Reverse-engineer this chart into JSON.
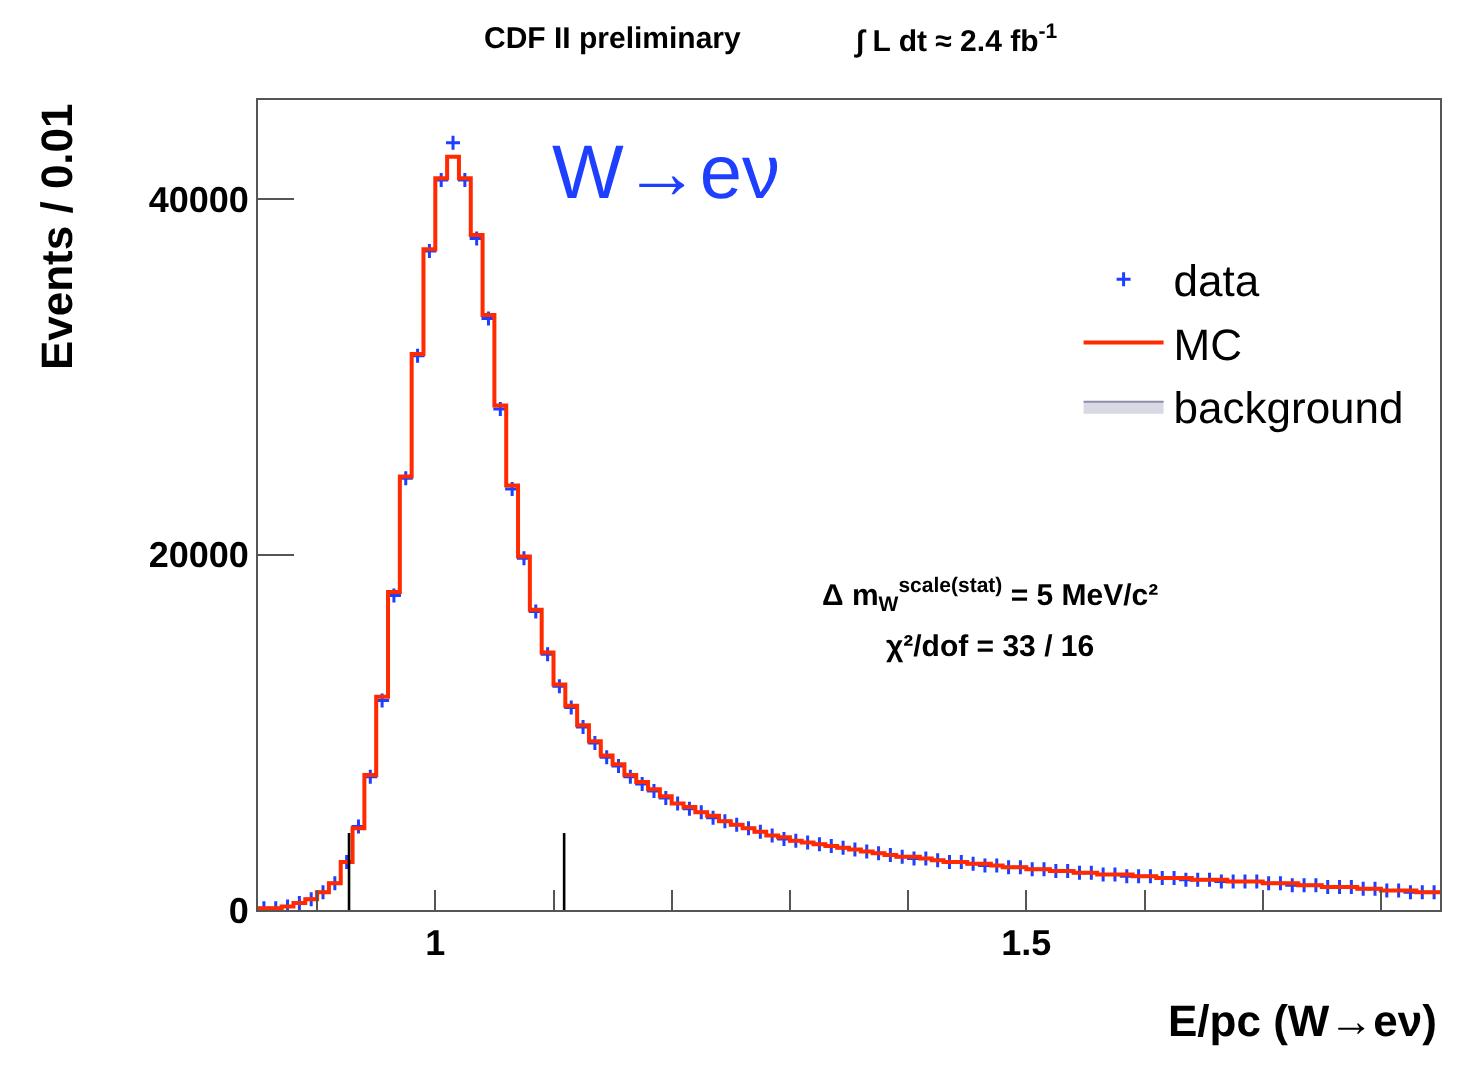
{
  "chart_data": {
    "type": "histogram",
    "title": "CDF II preliminary",
    "subtitle": "∫ L dt ≈ 2.4 fb$^{-1}$",
    "xlabel": "E/pc (W→eν)",
    "ylabel": "Events / 0.01",
    "annotations": [
      "W→eν",
      "Δ m$_{W}$$^{scale(stat)}$ = 5 MeV/c²",
      "χ²/dof = 33 / 16"
    ],
    "bins": [
      0.85,
      0.86,
      0.87,
      0.88,
      0.89,
      0.9,
      0.91,
      0.92,
      0.93,
      0.94,
      0.95,
      0.96,
      0.97,
      0.98,
      0.99,
      1.0,
      1.01,
      1.02,
      1.03,
      1.04,
      1.05,
      1.06,
      1.07,
      1.08,
      1.09,
      1.1,
      1.11,
      1.12,
      1.13,
      1.14,
      1.15,
      1.16,
      1.17,
      1.18,
      1.19,
      1.2,
      1.21,
      1.22,
      1.23,
      1.24,
      1.25,
      1.26,
      1.27,
      1.28,
      1.29,
      1.3,
      1.31,
      1.32,
      1.33,
      1.34,
      1.35,
      1.36,
      1.37,
      1.38,
      1.39,
      1.4,
      1.41,
      1.42,
      1.43,
      1.44,
      1.45,
      1.46,
      1.47,
      1.48,
      1.49,
      1.5,
      1.51,
      1.52,
      1.53,
      1.54,
      1.55,
      1.56,
      1.57,
      1.58,
      1.59,
      1.6,
      1.61,
      1.62,
      1.63,
      1.64,
      1.65,
      1.66,
      1.67,
      1.68,
      1.69,
      1.7,
      1.71,
      1.72,
      1.73,
      1.74,
      1.75,
      1.76,
      1.77,
      1.78,
      1.79,
      1.8,
      1.81,
      1.82,
      1.83,
      1.84,
      1.85
    ],
    "series": [
      {
        "name": "data",
        "type": "scatter",
        "color": "#1f3fff",
        "marker": "cross",
        "x": [
          0.855,
          0.865,
          0.875,
          0.885,
          0.895,
          0.905,
          0.915,
          0.925,
          0.935,
          0.945,
          0.955,
          0.965,
          0.975,
          0.985,
          0.995,
          1.005,
          1.015,
          1.025,
          1.035,
          1.045,
          1.055,
          1.065,
          1.075,
          1.085,
          1.095,
          1.105,
          1.115,
          1.125,
          1.135,
          1.145,
          1.155,
          1.165,
          1.175,
          1.185,
          1.195,
          1.205,
          1.215,
          1.225,
          1.235,
          1.245,
          1.255,
          1.265,
          1.275,
          1.285,
          1.295,
          1.305,
          1.315,
          1.325,
          1.335,
          1.345,
          1.355,
          1.365,
          1.375,
          1.385,
          1.395,
          1.405,
          1.415,
          1.425,
          1.435,
          1.445,
          1.455,
          1.465,
          1.475,
          1.485,
          1.495,
          1.505,
          1.515,
          1.525,
          1.535,
          1.545,
          1.555,
          1.565,
          1.575,
          1.585,
          1.595,
          1.605,
          1.615,
          1.625,
          1.635,
          1.645,
          1.655,
          1.665,
          1.675,
          1.685,
          1.695,
          1.705,
          1.715,
          1.725,
          1.735,
          1.745,
          1.755,
          1.765,
          1.775,
          1.785,
          1.795,
          1.805,
          1.815,
          1.825,
          1.835,
          1.845
        ],
        "values": [
          100,
          100,
          200,
          400,
          600,
          1000,
          1500,
          2700,
          4700,
          7500,
          11800,
          17700,
          24300,
          31200,
          37100,
          41100,
          43200,
          41100,
          37800,
          33300,
          28200,
          23700,
          19800,
          16800,
          14400,
          12600,
          11400,
          10300,
          9400,
          8600,
          8100,
          7500,
          7100,
          6700,
          6300,
          6000,
          5700,
          5500,
          5200,
          5000,
          4800,
          4600,
          4400,
          4200,
          4000,
          3900,
          3800,
          3700,
          3600,
          3500,
          3400,
          3300,
          3200,
          3100,
          3000,
          2900,
          2900,
          2800,
          2700,
          2700,
          2600,
          2500,
          2500,
          2400,
          2400,
          2300,
          2300,
          2200,
          2200,
          2100,
          2100,
          2000,
          2000,
          1900,
          1900,
          1900,
          1800,
          1800,
          1700,
          1700,
          1700,
          1600,
          1600,
          1600,
          1600,
          1500,
          1500,
          1400,
          1400,
          1400,
          1300,
          1300,
          1300,
          1200,
          1200,
          1100,
          1100,
          1000,
          1000,
          1000
        ]
      },
      {
        "name": "MC",
        "color": "#ff2a00",
        "values": [
          100,
          100,
          200,
          400,
          600,
          1000,
          1500,
          2700,
          4600,
          7600,
          12000,
          17900,
          24400,
          31300,
          37200,
          41200,
          42400,
          41200,
          38000,
          33500,
          28400,
          23900,
          19900,
          16900,
          14500,
          12700,
          11500,
          10400,
          9500,
          8700,
          8200,
          7600,
          7200,
          6800,
          6400,
          6000,
          5800,
          5500,
          5300,
          5000,
          4800,
          4600,
          4400,
          4200,
          4100,
          3900,
          3800,
          3700,
          3600,
          3500,
          3400,
          3300,
          3200,
          3100,
          3000,
          3000,
          2900,
          2800,
          2700,
          2700,
          2600,
          2600,
          2500,
          2400,
          2400,
          2300,
          2300,
          2200,
          2200,
          2100,
          2100,
          2000,
          2000,
          2000,
          1900,
          1900,
          1800,
          1800,
          1800,
          1700,
          1700,
          1700,
          1600,
          1600,
          1600,
          1500,
          1500,
          1500,
          1400,
          1400,
          1300,
          1300,
          1300,
          1200,
          1200,
          1100,
          1100,
          1100,
          1000,
          1000
        ]
      },
      {
        "name": "background",
        "type": "area",
        "color": "#d9d9e6"
      }
    ],
    "ref_lines": [
      {
        "axis": "x",
        "value": 0.927,
        "color": "#000000"
      },
      {
        "axis": "x",
        "value": 1.109,
        "color": "#000000"
      }
    ],
    "xlim": [
      0.85,
      1.85
    ],
    "xticks": [
      {
        "value": 0.9,
        "label": null
      },
      1,
      {
        "value": 1.1,
        "label": null
      },
      {
        "value": 1.2,
        "label": null
      },
      {
        "value": 1.3,
        "label": null
      },
      {
        "value": 1.4,
        "label": null
      },
      1.5,
      {
        "value": 1.6,
        "label": null
      },
      {
        "value": 1.7,
        "label": null
      },
      {
        "value": 1.8,
        "label": null
      }
    ],
    "ylim": [
      0,
      45600
    ],
    "yticks": [
      0,
      20000,
      40000
    ],
    "grid": false,
    "legend": "top right"
  }
}
